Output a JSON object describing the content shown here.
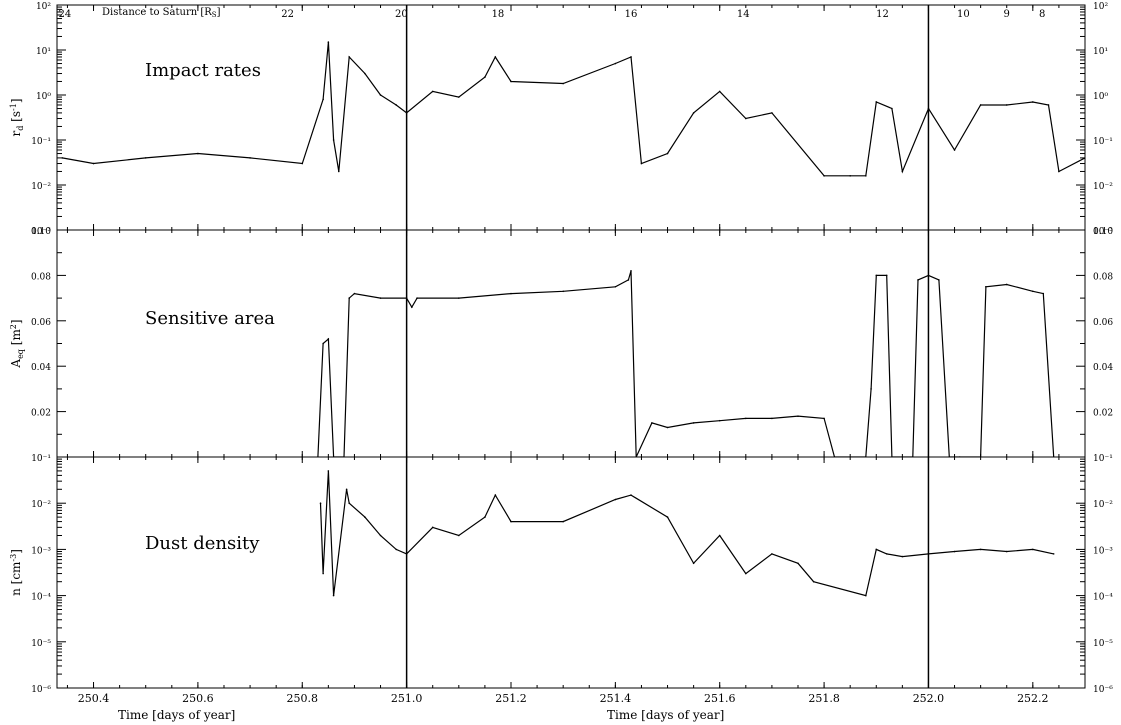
{
  "figure": {
    "top_axis_label": "Distance to Saturn [R",
    "top_axis_label_sub": "S",
    "top_axis_label_end": "]",
    "top_ticks": [
      {
        "t": 250.345,
        "label": "24"
      },
      {
        "t": 250.772,
        "label": "22"
      },
      {
        "t": 250.99,
        "label": "20"
      },
      {
        "t": 251.175,
        "label": "18"
      },
      {
        "t": 251.43,
        "label": "16"
      },
      {
        "t": 251.645,
        "label": "14"
      },
      {
        "t": 251.912,
        "label": "12"
      },
      {
        "t": 252.067,
        "label": "10"
      },
      {
        "t": 252.15,
        "label": "9"
      },
      {
        "t": 252.218,
        "label": "8"
      }
    ],
    "x_range": [
      250.33,
      252.3
    ],
    "x_ticks": [
      "250.4",
      "250.6",
      "250.8",
      "251.0",
      "251.2",
      "251.4",
      "251.6",
      "251.8",
      "252.0",
      "252.2"
    ],
    "xlabel_left": "Time [days of year]",
    "xlabel_center": "Time [days of year]",
    "separators": [
      251.0,
      252.0
    ],
    "line_color": "#000000"
  },
  "chart_data": [
    {
      "type": "line",
      "title": "Impact rates",
      "ylabel": "r_d [s⁻¹]",
      "ylabel_main": "r",
      "ylabel_sub": "d",
      "ylabel_unit": "[s",
      "ylabel_sup": "-1",
      "ylabel_end": "]",
      "yscale": "log",
      "ylim": [
        0.001,
        100
      ],
      "yticks": [
        "10⁻³",
        "10⁻²",
        "10⁻¹",
        "10⁰",
        "10¹",
        "10²"
      ],
      "yticks_right": [
        "10⁻³",
        "10⁻²",
        "10⁻¹",
        "10⁰",
        "10¹",
        "10²"
      ],
      "series": [
        {
          "x": [
            250.34,
            250.4,
            250.5,
            250.6,
            250.7,
            250.8,
            250.84,
            250.85,
            250.86,
            250.87,
            250.89,
            250.92,
            250.95,
            250.98,
            251.0,
            251.05,
            251.1,
            251.15,
            251.17,
            251.2,
            251.3,
            251.4,
            251.43,
            251.45,
            251.5,
            251.55,
            251.6,
            251.65,
            251.7,
            251.8,
            251.85,
            251.88,
            251.9,
            251.93,
            251.95,
            252.0,
            252.05,
            252.1,
            252.15,
            252.2,
            252.23,
            252.25,
            252.3
          ],
          "y": [
            0.04,
            0.03,
            0.04,
            0.05,
            0.04,
            0.03,
            0.8,
            15,
            0.1,
            0.02,
            7,
            3,
            1,
            0.6,
            0.4,
            1.2,
            0.9,
            2.5,
            7,
            2,
            1.8,
            5,
            7,
            0.03,
            0.05,
            0.4,
            1.2,
            0.3,
            0.4,
            0.016,
            0.016,
            0.016,
            0.7,
            0.5,
            0.02,
            0.5,
            0.06,
            0.6,
            0.6,
            0.7,
            0.6,
            0.02,
            0.04
          ]
        }
      ]
    },
    {
      "type": "line",
      "title": "Sensitive area",
      "ylabel": "A_eq [m²]",
      "ylabel_main": "A",
      "ylabel_sub": "eq",
      "ylabel_unit": "[m",
      "ylabel_sup": "2",
      "ylabel_end": "]",
      "yscale": "linear",
      "ylim": [
        0.0,
        0.1
      ],
      "yticks": [
        "0.02",
        "0.04",
        "0.06",
        "0.08",
        "0.10"
      ],
      "yticks_right": [
        "0.02",
        "0.04",
        "0.06",
        "0.08",
        "0.10"
      ],
      "series": [
        {
          "x": [
            250.83,
            250.84,
            250.85,
            250.86,
            250.88,
            250.89,
            250.9,
            250.95,
            251.0,
            251.01,
            251.02,
            251.1,
            251.2,
            251.3,
            251.4,
            251.425,
            251.43,
            251.44,
            251.47,
            251.5,
            251.55,
            251.6,
            251.65,
            251.7,
            251.75,
            251.8,
            251.82,
            251.88,
            251.89,
            251.9,
            251.92,
            251.93,
            251.95,
            251.97,
            251.98,
            252.0,
            252.02,
            252.04,
            252.06,
            252.1,
            252.11,
            252.15,
            252.2,
            252.22,
            252.24
          ],
          "y": [
            0.0,
            0.05,
            0.052,
            0.0,
            0.0,
            0.07,
            0.072,
            0.07,
            0.07,
            0.066,
            0.07,
            0.07,
            0.072,
            0.073,
            0.075,
            0.078,
            0.082,
            0.0,
            0.015,
            0.013,
            0.015,
            0.016,
            0.017,
            0.017,
            0.018,
            0.017,
            0.0,
            0.0,
            0.03,
            0.08,
            0.08,
            0.0,
            0.0,
            0.0,
            0.078,
            0.08,
            0.078,
            0.0,
            0.0,
            0.0,
            0.075,
            0.076,
            0.073,
            0.072,
            0.0
          ]
        }
      ]
    },
    {
      "type": "line",
      "title": "Dust density",
      "ylabel": "n [cm⁻³]",
      "ylabel_main": "n",
      "ylabel_sub": "",
      "ylabel_unit": "[cm",
      "ylabel_sup": "-3",
      "ylabel_end": "]",
      "yscale": "log",
      "ylim": [
        1e-06,
        0.1
      ],
      "yticks": [
        "10⁻⁶",
        "10⁻⁵",
        "10⁻⁴",
        "10⁻³",
        "10⁻²",
        "10⁻¹"
      ],
      "yticks_right": [
        "10⁻⁶",
        "10⁻⁵",
        "10⁻⁴",
        "10⁻³",
        "10⁻²",
        "10⁻¹"
      ],
      "series": [
        {
          "x": [
            250.835,
            250.84,
            250.85,
            250.86,
            250.885,
            250.89,
            250.92,
            250.95,
            250.98,
            251.0,
            251.05,
            251.1,
            251.15,
            251.17,
            251.2,
            251.3,
            251.4,
            251.43,
            251.5,
            251.55,
            251.6,
            251.65,
            251.7,
            251.75,
            251.78,
            251.88,
            251.9,
            251.92,
            251.95,
            252.0,
            252.05,
            252.1,
            252.15,
            252.2,
            252.24
          ],
          "y": [
            0.01,
            0.0003,
            0.05,
            0.0001,
            0.02,
            0.01,
            0.005,
            0.002,
            0.001,
            0.0008,
            0.003,
            0.002,
            0.005,
            0.015,
            0.004,
            0.004,
            0.012,
            0.015,
            0.005,
            0.0005,
            0.002,
            0.0003,
            0.0008,
            0.0005,
            0.0002,
            0.0001,
            0.001,
            0.0008,
            0.0007,
            0.0008,
            0.0009,
            0.001,
            0.0009,
            0.001,
            0.0008
          ]
        }
      ]
    }
  ]
}
